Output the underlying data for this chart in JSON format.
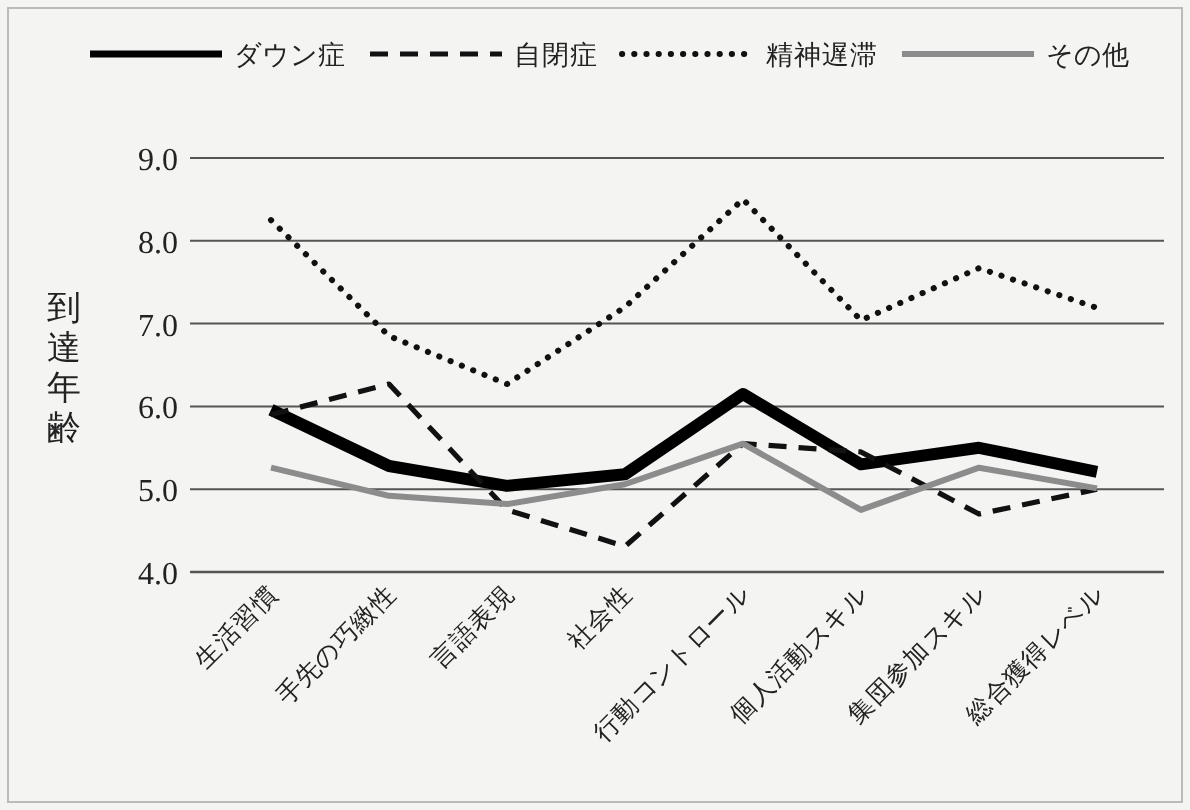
{
  "chart_data": {
    "type": "line",
    "ylabel": "到達年齢",
    "categories": [
      "生活習慣",
      "手先の巧緻性",
      "言語表現",
      "社会性",
      "行動コントロール",
      "個人活動スキル",
      "集団参加スキル",
      "総合獲得レベル"
    ],
    "series": [
      {
        "name": "ダウン症",
        "color": "#000000",
        "line_style": "solid",
        "values": [
          5.96,
          5.28,
          5.04,
          5.18,
          6.15,
          5.3,
          5.5,
          5.21
        ]
      },
      {
        "name": "自閉症",
        "color": "#111111",
        "line_style": "dashed",
        "values": [
          5.9,
          6.27,
          4.75,
          4.31,
          5.55,
          5.45,
          4.7,
          5.0
        ]
      },
      {
        "name": "精神遅滞",
        "color": "#111111",
        "line_style": "dotted",
        "values": [
          8.25,
          6.85,
          6.27,
          7.2,
          8.5,
          7.04,
          7.67,
          7.19
        ]
      },
      {
        "name": "その他",
        "color": "#8c8c8c",
        "line_style": "solid",
        "values": [
          5.26,
          4.92,
          4.82,
          5.06,
          5.55,
          4.75,
          5.26,
          5.01
        ]
      }
    ],
    "ylim": [
      4.0,
      9.0
    ],
    "yticks": [
      {
        "value": 4,
        "label": "4.0"
      },
      {
        "value": 5,
        "label": "5.0"
      },
      {
        "value": 6,
        "label": "6.0"
      },
      {
        "value": 7,
        "label": "7.0"
      },
      {
        "value": 8,
        "label": "8.0"
      },
      {
        "value": 9,
        "label": "9.0"
      }
    ],
    "grid": "y",
    "legend": "top",
    "marker": "none"
  }
}
